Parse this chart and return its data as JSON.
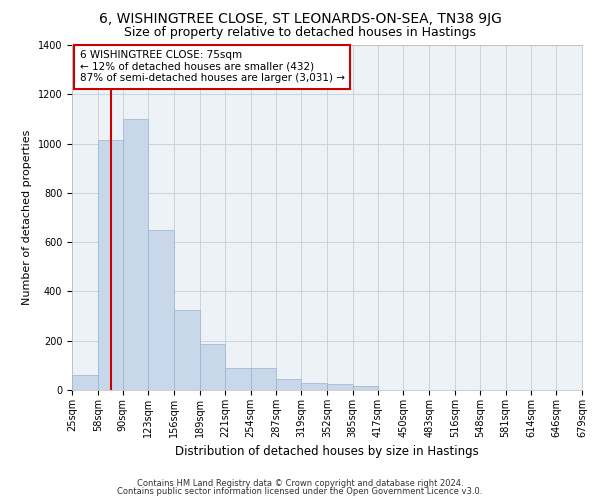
{
  "title": "6, WISHINGTREE CLOSE, ST LEONARDS-ON-SEA, TN38 9JG",
  "subtitle": "Size of property relative to detached houses in Hastings",
  "xlabel": "Distribution of detached houses by size in Hastings",
  "ylabel": "Number of detached properties",
  "footer_line1": "Contains HM Land Registry data © Crown copyright and database right 2024.",
  "footer_line2": "Contains public sector information licensed under the Open Government Licence v3.0.",
  "annotation_line1": "6 WISHINGTREE CLOSE: 75sqm",
  "annotation_line2": "← 12% of detached houses are smaller (432)",
  "annotation_line3": "87% of semi-detached houses are larger (3,031) →",
  "bar_left_edges": [
    25,
    58,
    90,
    123,
    156,
    189,
    221,
    254,
    287,
    319,
    352,
    385,
    417,
    450,
    483,
    516,
    548,
    581,
    614,
    646
  ],
  "bar_widths": [
    33,
    32,
    33,
    33,
    33,
    32,
    33,
    33,
    32,
    33,
    33,
    32,
    33,
    33,
    33,
    32,
    33,
    33,
    32,
    33
  ],
  "bar_heights": [
    62,
    1015,
    1100,
    648,
    325,
    185,
    90,
    90,
    45,
    30,
    25,
    15,
    0,
    0,
    0,
    0,
    0,
    0,
    0,
    0
  ],
  "bar_color": "#c8d8ea",
  "bar_edge_color": "#9ab4cc",
  "vline_x": 75,
  "vline_color": "#cc0000",
  "ylim": [
    0,
    1400
  ],
  "yticks": [
    0,
    200,
    400,
    600,
    800,
    1000,
    1200,
    1400
  ],
  "xtick_labels": [
    "25sqm",
    "58sqm",
    "90sqm",
    "123sqm",
    "156sqm",
    "189sqm",
    "221sqm",
    "254sqm",
    "287sqm",
    "319sqm",
    "352sqm",
    "385sqm",
    "417sqm",
    "450sqm",
    "483sqm",
    "516sqm",
    "548sqm",
    "581sqm",
    "614sqm",
    "646sqm",
    "679sqm"
  ],
  "grid_color": "#c8d4de",
  "bg_color": "#edf2f7",
  "title_fontsize": 10,
  "subtitle_fontsize": 9,
  "ylabel_fontsize": 8,
  "xlabel_fontsize": 8.5,
  "annotation_fontsize": 7.5,
  "annotation_box_color": "#ffffff",
  "annotation_box_edge": "#cc0000",
  "footer_fontsize": 6,
  "tick_fontsize": 7
}
